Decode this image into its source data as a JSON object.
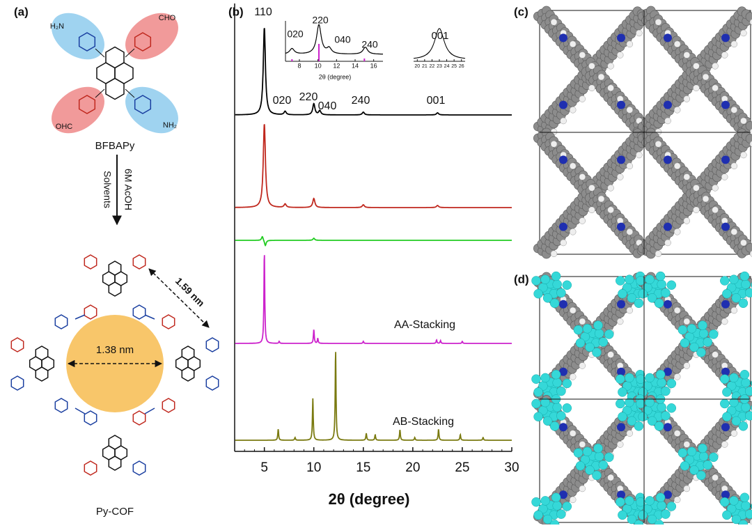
{
  "panel_a": {
    "label": "(a)",
    "monomer": "BFBAPy",
    "groups": [
      "H₂N",
      "CHO",
      "OHC",
      "NH₂"
    ],
    "conditions": [
      "6M AcOH",
      "Solvents"
    ],
    "pore": "1.38 nm",
    "spacing": "1.59 nm",
    "product": "Py-COF"
  },
  "panel_b": {
    "label": "(b)",
    "x_label": "2θ (degree)",
    "xlim": [
      2,
      30
    ],
    "xticks": [
      5,
      10,
      15,
      20,
      25,
      30
    ],
    "traces": [
      {
        "color": "#000000",
        "width": 0.13,
        "peaks": [
          {
            "x": 5,
            "h": 125
          },
          {
            "x": 7.1,
            "h": 5
          },
          {
            "x": 10,
            "h": 16
          },
          {
            "x": 10.6,
            "h": 6
          },
          {
            "x": 15,
            "h": 4
          },
          {
            "x": 22.5,
            "h": 3
          }
        ]
      },
      {
        "color": "#c0281e",
        "width": 0.13,
        "peaks": [
          {
            "x": 5,
            "h": 120
          },
          {
            "x": 7.1,
            "h": 5
          },
          {
            "x": 10,
            "h": 13
          },
          {
            "x": 15,
            "h": 4
          },
          {
            "x": 22.5,
            "h": 3
          }
        ]
      },
      {
        "color": "#22cc22",
        "width": 0.1,
        "peaks": [
          {
            "x": 4.8,
            "h": 6
          },
          {
            "x": 5.1,
            "h": -8
          },
          {
            "x": 10,
            "h": 3
          }
        ]
      },
      {
        "color": "#cc22cc",
        "width": 0.05,
        "peaks": [
          {
            "x": 5,
            "h": 130
          },
          {
            "x": 6.5,
            "h": 3
          },
          {
            "x": 10,
            "h": 20
          },
          {
            "x": 10.4,
            "h": 7
          },
          {
            "x": 15,
            "h": 3
          },
          {
            "x": 22.4,
            "h": 5
          },
          {
            "x": 22.8,
            "h": 4
          },
          {
            "x": 25,
            "h": 3
          }
        ]
      },
      {
        "color": "#7a7a10",
        "width": 0.05,
        "peaks": [
          {
            "x": 6.4,
            "h": 16
          },
          {
            "x": 8.1,
            "h": 4
          },
          {
            "x": 9.9,
            "h": 60
          },
          {
            "x": 12.2,
            "h": 128
          },
          {
            "x": 15.3,
            "h": 10
          },
          {
            "x": 16.2,
            "h": 8
          },
          {
            "x": 18.7,
            "h": 15
          },
          {
            "x": 20.2,
            "h": 4
          },
          {
            "x": 22.6,
            "h": 16
          },
          {
            "x": 24.8,
            "h": 8
          },
          {
            "x": 27.1,
            "h": 4
          }
        ]
      }
    ],
    "peak_labels": [
      "110",
      "020",
      "220",
      "040",
      "240",
      "001"
    ],
    "trace_labels": [
      "AA-Stacking",
      "AB-Stacking"
    ],
    "inset_left": {
      "xlim": [
        6.5,
        17
      ],
      "xticks": [
        8,
        10,
        12,
        14,
        16
      ],
      "x_label": "2θ (degree)",
      "peak_labels": [
        "020",
        "220",
        "040",
        "240"
      ],
      "trace": {
        "color": "#000000",
        "width": 0.3,
        "peaks": [
          {
            "x": 7.2,
            "h": 8
          },
          {
            "x": 10.1,
            "h": 42
          },
          {
            "x": 11.2,
            "h": 8
          },
          {
            "x": 15.1,
            "h": 10
          }
        ]
      },
      "sticks": {
        "color": "#cc22cc",
        "peaks": [
          {
            "x": 7.2,
            "h": 3
          },
          {
            "x": 10.1,
            "h": 25
          },
          {
            "x": 15,
            "h": 4
          }
        ]
      }
    },
    "inset_right": {
      "peak_label": "001",
      "xlim": [
        19.5,
        26.5
      ],
      "xticks": [
        20,
        21,
        22,
        23,
        24,
        25,
        26
      ],
      "trace": {
        "color": "#000000",
        "width": 0.8,
        "peaks": [
          {
            "x": 23,
            "h": 45
          }
        ]
      }
    }
  },
  "panel_c": {
    "label": "(c)"
  },
  "panel_d": {
    "label": "(d)"
  }
}
